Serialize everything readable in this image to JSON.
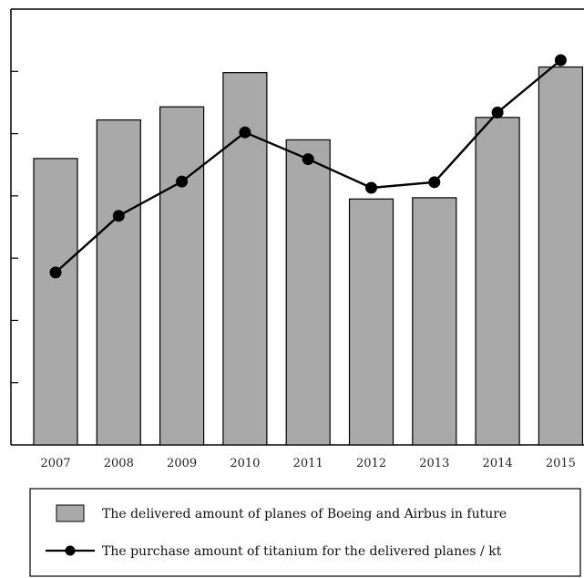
{
  "chart_data": {
    "type": "bar",
    "categories": [
      "2007",
      "2008",
      "2009",
      "2010",
      "2011",
      "2012",
      "2013",
      "2014",
      "2015"
    ],
    "ylim": [
      0,
      7
    ],
    "y_ticks": [
      1,
      2,
      3,
      4,
      5,
      6
    ],
    "grid": false,
    "legend_position": "bottom",
    "series": [
      {
        "name": "The delivered amount of planes of Boeing and Airbus in future",
        "type": "bar",
        "color": "#a9a9a9",
        "values": [
          4.6,
          5.22,
          5.43,
          5.98,
          4.9,
          3.95,
          3.97,
          5.26,
          6.07
        ]
      },
      {
        "name": "The purchase amount of titanium for the delivered planes / kt",
        "type": "line",
        "color": "#000000",
        "values": [
          2.77,
          3.68,
          4.23,
          5.02,
          4.59,
          4.13,
          4.22,
          5.34,
          6.18
        ]
      }
    ]
  }
}
